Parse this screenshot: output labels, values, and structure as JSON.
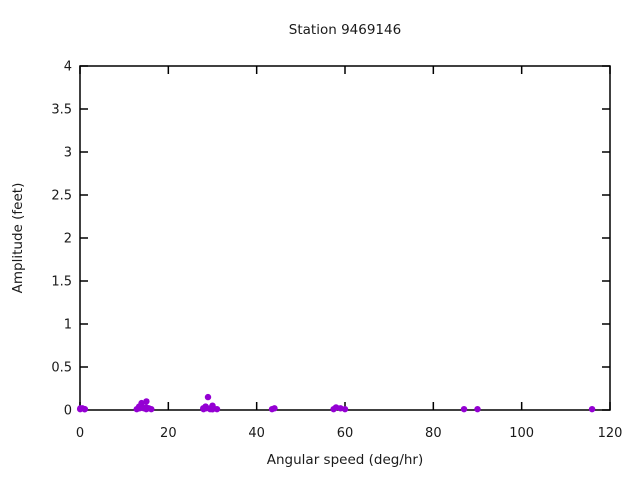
{
  "window": {
    "background_color": "#ffffff",
    "text_color": "#1a1a1a",
    "axis_color": "#000000"
  },
  "chart_data": {
    "type": "scatter",
    "title": "Station 9469146",
    "xlabel": "Angular speed (deg/hr)",
    "ylabel": "Amplitude (feet)",
    "xlim": [
      0,
      120
    ],
    "ylim": [
      0,
      4
    ],
    "xticks": [
      0,
      20,
      40,
      60,
      80,
      100,
      120
    ],
    "yticks": [
      0,
      0.5,
      1,
      1.5,
      2,
      2.5,
      3,
      3.5,
      4
    ],
    "grid": false,
    "legend": "none",
    "tick_style": "inward-mirrored-all-borders",
    "marker": {
      "shape": "filled-circle",
      "color": "#9400d3"
    },
    "points": [
      [
        0.04,
        0.01
      ],
      [
        0.08,
        0.02
      ],
      [
        0.54,
        0.02
      ],
      [
        1.02,
        0.01
      ],
      [
        1.1,
        0.01
      ],
      [
        12.85,
        0.01
      ],
      [
        13.4,
        0.04
      ],
      [
        13.47,
        0.02
      ],
      [
        13.94,
        0.08
      ],
      [
        14.49,
        0.02
      ],
      [
        14.96,
        0.03
      ],
      [
        15.0,
        0.01
      ],
      [
        15.04,
        0.1
      ],
      [
        15.59,
        0.02
      ],
      [
        16.14,
        0.01
      ],
      [
        27.9,
        0.02
      ],
      [
        27.97,
        0.01
      ],
      [
        28.44,
        0.04
      ],
      [
        28.51,
        0.02
      ],
      [
        28.98,
        0.15
      ],
      [
        29.46,
        0.01
      ],
      [
        29.53,
        0.02
      ],
      [
        29.96,
        0.01
      ],
      [
        30.0,
        0.05
      ],
      [
        30.04,
        0.01
      ],
      [
        30.08,
        0.03
      ],
      [
        31.02,
        0.01
      ],
      [
        43.48,
        0.01
      ],
      [
        44.03,
        0.02
      ],
      [
        57.42,
        0.01
      ],
      [
        57.97,
        0.03
      ],
      [
        58.98,
        0.02
      ],
      [
        60.0,
        0.01
      ],
      [
        86.95,
        0.01
      ],
      [
        90.0,
        0.01
      ],
      [
        115.94,
        0.01
      ]
    ]
  }
}
